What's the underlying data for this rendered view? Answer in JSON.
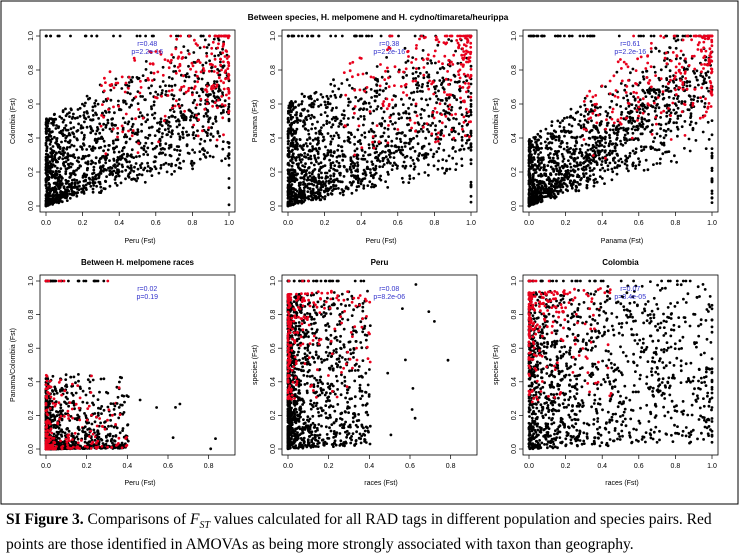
{
  "figure": {
    "title": "Between species, H. melpomene and H. cydno/timareta/heurippa"
  },
  "caption": {
    "label": "SI Figure 3.",
    "before": "Comparisons of",
    "fst_base": "F",
    "fst_sub": "ST",
    "after": "values calculated for all RAD tags in different population and species pairs. Red points are those identified in AMOVAs as being more strongly associated with taxon than geography."
  },
  "colors": {
    "black_points": "#000000",
    "red_points": "#e8001c",
    "stat_text": "#3333cc",
    "frame": "#000000"
  },
  "chart_data": [
    {
      "type": "scatter",
      "title": "",
      "xlabel": "Peru (Fst)",
      "ylabel": "Colombia (Fst)",
      "xlim": [
        0,
        1
      ],
      "ylim": [
        0,
        1
      ],
      "xticks": [
        "0.0",
        "0.2",
        "0.4",
        "0.6",
        "0.8",
        "1.0"
      ],
      "yticks": [
        "0.0",
        "0.2",
        "0.4",
        "0.6",
        "0.8",
        "1.0"
      ],
      "stats": {
        "r": "r=0.48",
        "p": "p=2.2e-16"
      },
      "series": [
        {
          "color": "black",
          "distribution": {
            "n": 1450,
            "x_mode": "low",
            "y_mode": "low",
            "corr": 0.48,
            "spread": 0.75
          }
        },
        {
          "color": "red",
          "distribution": {
            "n": 230,
            "x_mode": "high",
            "y_mode": "high",
            "corr": 0.35,
            "spread": 0.8
          }
        }
      ]
    },
    {
      "type": "scatter",
      "title": "",
      "xlabel": "Peru (Fst)",
      "ylabel": "Panama (Fst)",
      "xlim": [
        0,
        1
      ],
      "ylim": [
        0,
        1
      ],
      "xticks": [
        "0.0",
        "0.2",
        "0.4",
        "0.6",
        "0.8",
        "1.0"
      ],
      "yticks": [
        "0.0",
        "0.2",
        "0.4",
        "0.6",
        "0.8",
        "1.0"
      ],
      "stats": {
        "r": "r=0.38",
        "p": "p=2.2e-16"
      },
      "series": [
        {
          "color": "black",
          "distribution": {
            "n": 1450,
            "x_mode": "low",
            "y_mode": "low",
            "corr": 0.38,
            "spread": 0.75
          }
        },
        {
          "color": "red",
          "distribution": {
            "n": 230,
            "x_mode": "high",
            "y_mode": "high",
            "corr": 0.3,
            "spread": 0.8
          }
        }
      ]
    },
    {
      "type": "scatter",
      "title": "",
      "xlabel": "Panama (Fst)",
      "ylabel": "Colombia (Fst)",
      "xlim": [
        0,
        1
      ],
      "ylim": [
        0,
        1
      ],
      "xticks": [
        "0.0",
        "0.2",
        "0.4",
        "0.6",
        "0.8",
        "1.0"
      ],
      "yticks": [
        "0.0",
        "0.2",
        "0.4",
        "0.6",
        "0.8",
        "1.0"
      ],
      "stats": {
        "r": "r=0.61",
        "p": "p=2.2e-16"
      },
      "series": [
        {
          "color": "black",
          "distribution": {
            "n": 1450,
            "x_mode": "low",
            "y_mode": "low",
            "corr": 0.61,
            "spread": 0.7
          }
        },
        {
          "color": "red",
          "distribution": {
            "n": 230,
            "x_mode": "high",
            "y_mode": "high",
            "corr": 0.5,
            "spread": 0.7
          }
        }
      ]
    },
    {
      "type": "scatter",
      "title": "Between H. melpomene races",
      "xlabel": "Peru (Fst)",
      "ylabel": "Panama/Colombia (Fst)",
      "xlim": [
        0,
        0.9
      ],
      "ylim": [
        0,
        1
      ],
      "xticks": [
        "0.0",
        "0.2",
        "0.4",
        "0.6",
        "0.8"
      ],
      "yticks": [
        "0.0",
        "0.2",
        "0.4",
        "0.6",
        "0.8",
        "1.0"
      ],
      "stats": {
        "r": "r=0.02",
        "p": "p=0.19"
      },
      "series": [
        {
          "color": "black",
          "distribution": {
            "n": 1100,
            "x_mode": "very_low",
            "y_mode": "very_low",
            "corr": 0.02,
            "spread": 0.3
          }
        },
        {
          "color": "red",
          "distribution": {
            "n": 230,
            "x_mode": "very_low",
            "y_mode": "very_low",
            "corr": 0.02,
            "spread": 0.2
          }
        }
      ]
    },
    {
      "type": "scatter",
      "title": "Peru",
      "xlabel": "races (Fst)",
      "ylabel": "species (Fst)",
      "xlim": [
        0,
        0.9
      ],
      "ylim": [
        0,
        1
      ],
      "xticks": [
        "0.0",
        "0.2",
        "0.4",
        "0.6",
        "0.8"
      ],
      "yticks": [
        "0.0",
        "0.2",
        "0.4",
        "0.6",
        "0.8",
        "1.0"
      ],
      "stats": {
        "r": "r=0.08",
        "p": "p=8.2e-06"
      },
      "series": [
        {
          "color": "black",
          "distribution": {
            "n": 1300,
            "x_mode": "very_low",
            "y_mode": "wide",
            "corr": 0.08,
            "spread": 0.35
          }
        },
        {
          "color": "red",
          "distribution": {
            "n": 230,
            "x_mode": "very_low",
            "y_mode": "high",
            "corr": 0.08,
            "spread": 0.3
          }
        }
      ]
    },
    {
      "type": "scatter",
      "title": "Colombia",
      "xlabel": "races (Fst)",
      "ylabel": "species (Fst)",
      "xlim": [
        0,
        1
      ],
      "ylim": [
        0,
        1
      ],
      "xticks": [
        "0.0",
        "0.2",
        "0.4",
        "0.6",
        "0.8",
        "1.0"
      ],
      "yticks": [
        "0.0",
        "0.2",
        "0.4",
        "0.6",
        "0.8",
        "1.0"
      ],
      "stats": {
        "r": "r=0.07",
        "p": "p=3.4e-05"
      },
      "series": [
        {
          "color": "black",
          "distribution": {
            "n": 1300,
            "x_mode": "low",
            "y_mode": "wide",
            "corr": 0.07,
            "spread": 0.45
          }
        },
        {
          "color": "red",
          "distribution": {
            "n": 230,
            "x_mode": "very_low",
            "y_mode": "high",
            "corr": 0.07,
            "spread": 0.3
          }
        }
      ]
    }
  ]
}
